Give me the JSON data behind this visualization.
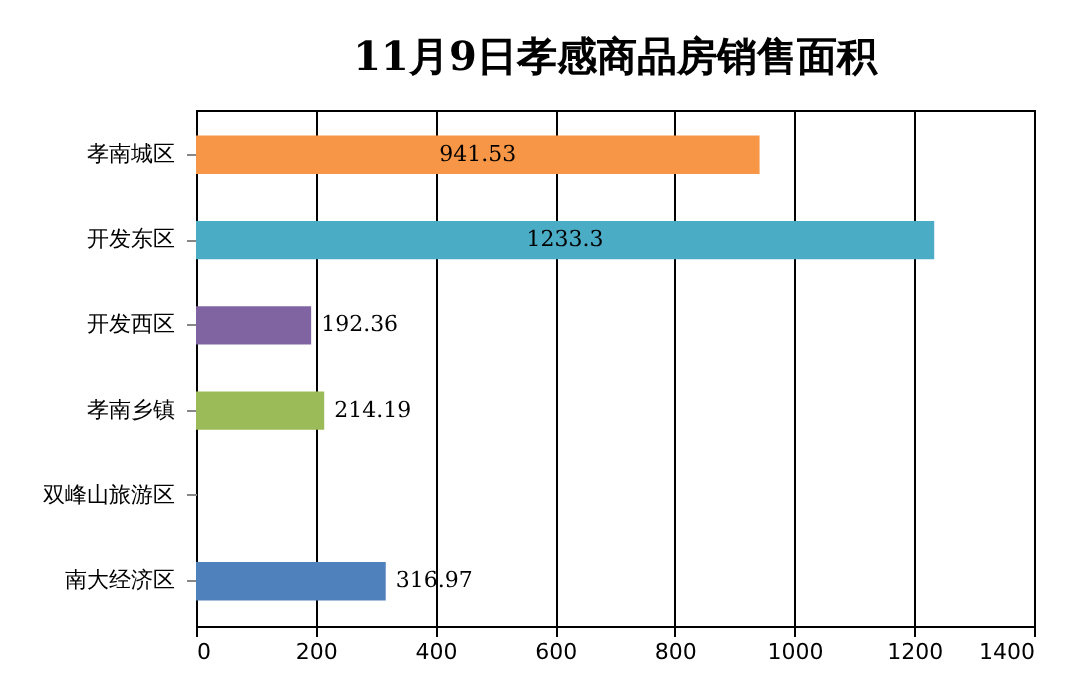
{
  "chart_data": {
    "type": "bar",
    "orientation": "horizontal",
    "title": "11月9日孝感商品房销售面积",
    "categories": [
      "孝南城区",
      "开发东区",
      "开发西区",
      "孝南乡镇",
      "双峰山旅游区",
      "南大经济区"
    ],
    "values": [
      941.53,
      1233.3,
      192.36,
      214.19,
      null,
      316.97
    ],
    "colors": [
      "#f79646",
      "#4bacc6",
      "#8064a2",
      "#9bbb59",
      "#c0504d",
      "#4f81bd"
    ],
    "xlim": [
      0,
      1400
    ],
    "xticks": [
      0,
      200,
      400,
      600,
      800,
      1000,
      1200,
      1400
    ],
    "grid": "x",
    "data_labels": true
  }
}
